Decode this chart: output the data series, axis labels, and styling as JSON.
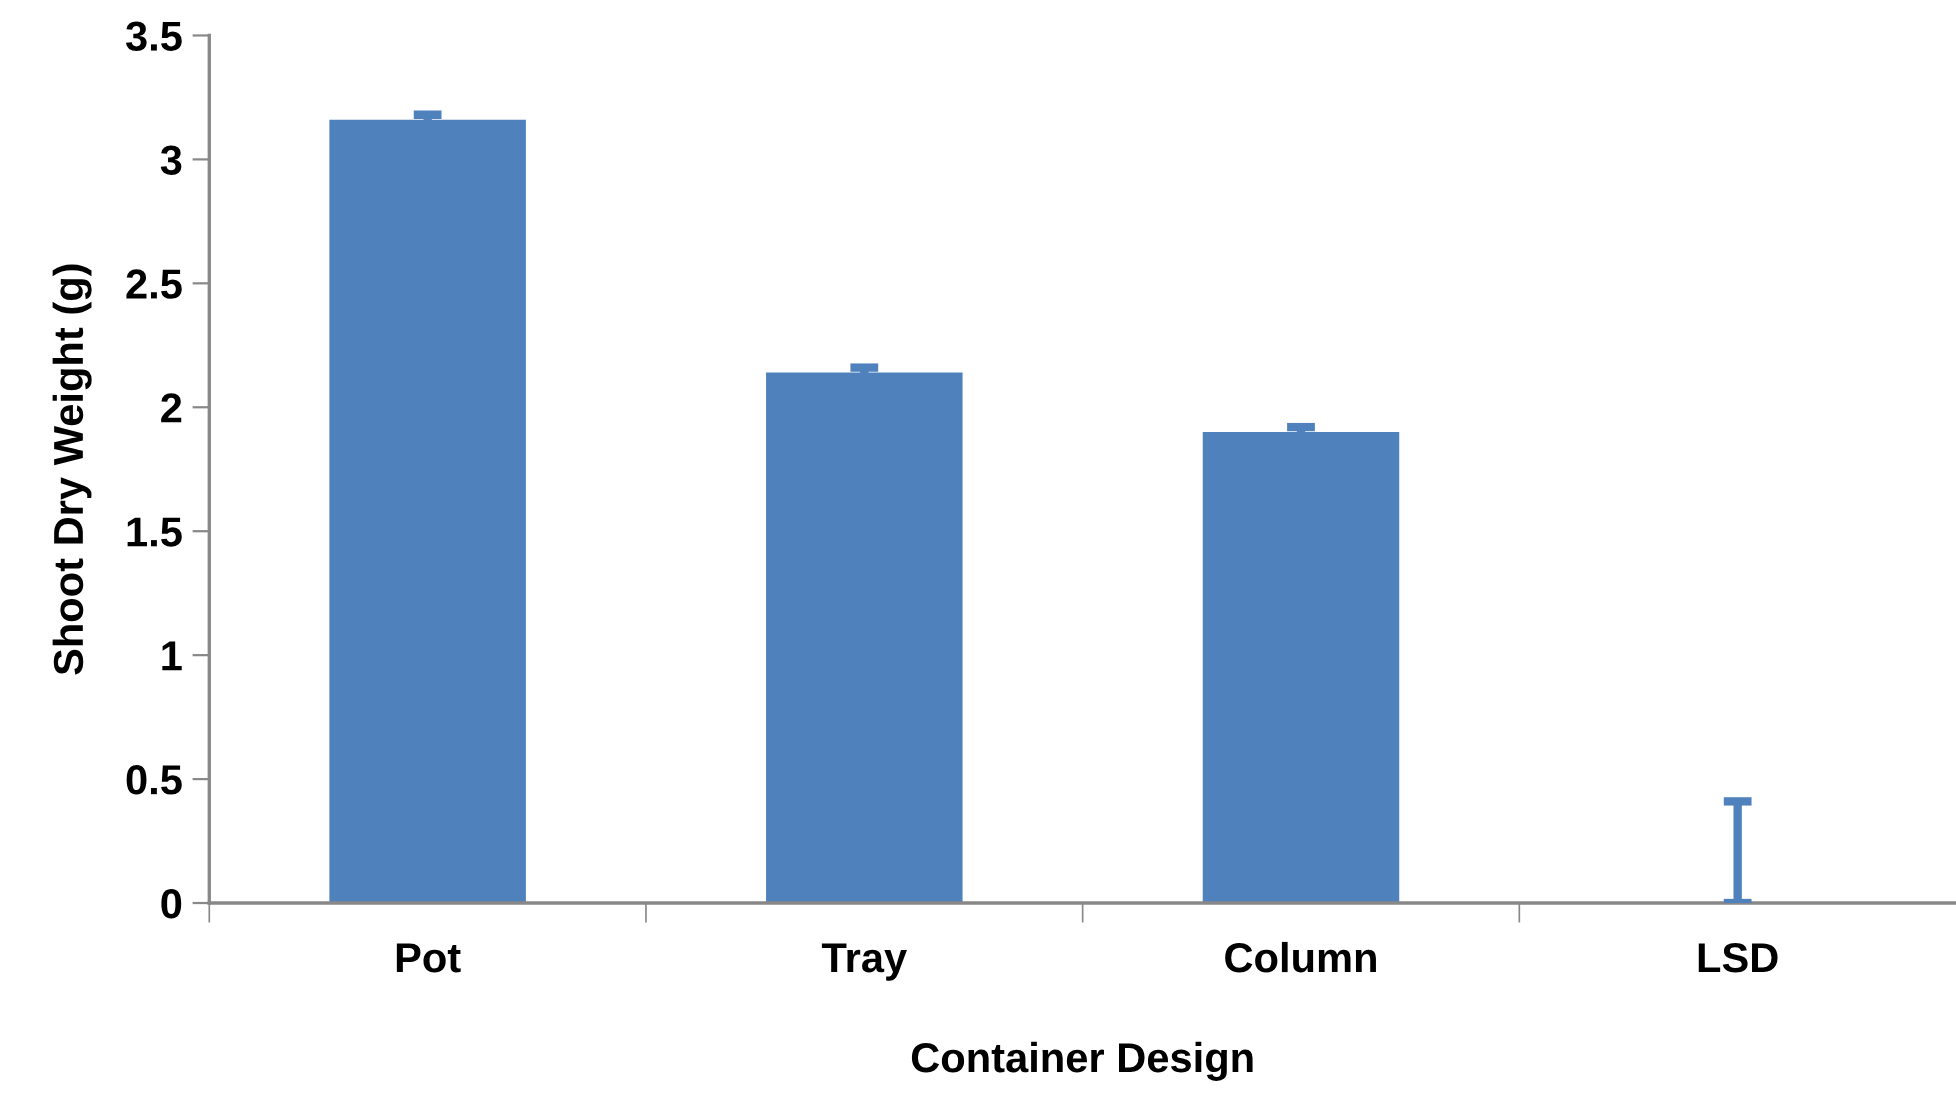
{
  "chart_data": {
    "type": "bar",
    "xlabel": "Container Design",
    "ylabel": "Shoot Dry Weight (g)",
    "categories": [
      "Pot",
      "Tray",
      "Column",
      "LSD"
    ],
    "values": [
      3.16,
      2.14,
      1.9,
      0
    ],
    "errors": [
      0.02,
      0.02,
      0.02,
      [
        0,
        0.41
      ]
    ],
    "color": "#4f81bd",
    "ylim": [
      0,
      3.5
    ],
    "yticks": [
      0,
      0.5,
      1,
      1.5,
      2,
      2.5,
      3,
      3.5
    ],
    "grid": false,
    "legend": false
  }
}
